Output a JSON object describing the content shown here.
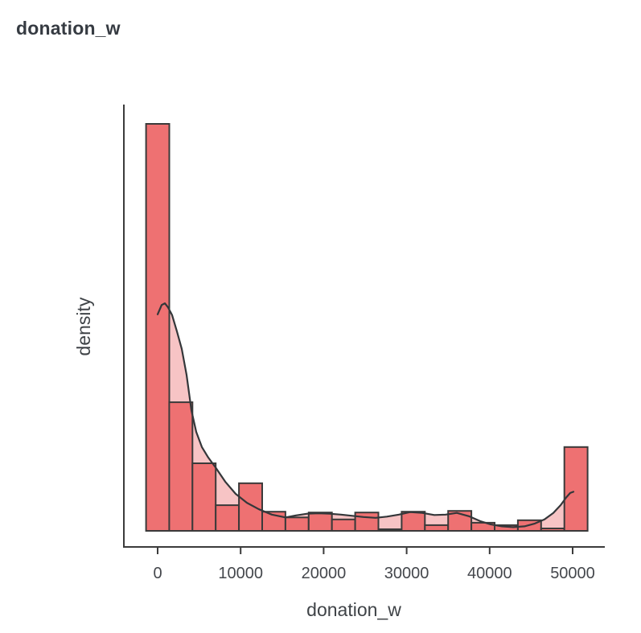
{
  "page": {
    "title": "donation_w"
  },
  "chart_data": {
    "type": "bar",
    "subtype": "histogram_with_kde",
    "title": "donation_w",
    "xlabel": "donation_w",
    "ylabel": "density",
    "grid": false,
    "legend": "none",
    "x_ticks": [
      0,
      10000,
      20000,
      30000,
      40000,
      50000
    ],
    "x_tick_labels": [
      "0",
      "10000",
      "20000",
      "30000",
      "40000",
      "50000"
    ],
    "xlim": [
      -4100,
      53800
    ],
    "ylim_relative": [
      0,
      1.065
    ],
    "bin_width": 2800,
    "bin_centers": [
      0,
      2800,
      5600,
      8400,
      11200,
      14000,
      16800,
      19600,
      22400,
      25200,
      28000,
      30800,
      33600,
      36400,
      39200,
      42000,
      44800,
      47600,
      50400
    ],
    "bar_heights_relative": [
      1.0,
      0.316,
      0.166,
      0.063,
      0.117,
      0.047,
      0.033,
      0.045,
      0.028,
      0.045,
      0.004,
      0.047,
      0.014,
      0.049,
      0.02,
      0.014,
      0.026,
      0.006,
      0.206
    ],
    "kde_points": [
      [
        0,
        0.532
      ],
      [
        485,
        0.555
      ],
      [
        872,
        0.559
      ],
      [
        1260,
        0.549
      ],
      [
        1744,
        0.53
      ],
      [
        2326,
        0.49
      ],
      [
        2907,
        0.447
      ],
      [
        3488,
        0.383
      ],
      [
        4070,
        0.296
      ],
      [
        4651,
        0.243
      ],
      [
        5329,
        0.206
      ],
      [
        6104,
        0.18
      ],
      [
        6977,
        0.156
      ],
      [
        8140,
        0.121
      ],
      [
        9399,
        0.091
      ],
      [
        10756,
        0.069
      ],
      [
        12209,
        0.053
      ],
      [
        13760,
        0.04
      ],
      [
        15407,
        0.033
      ],
      [
        16667,
        0.038
      ],
      [
        18023,
        0.042
      ],
      [
        19380,
        0.043
      ],
      [
        20736,
        0.042
      ],
      [
        22093,
        0.04
      ],
      [
        23450,
        0.037
      ],
      [
        24806,
        0.034
      ],
      [
        26260,
        0.032
      ],
      [
        27616,
        0.035
      ],
      [
        29070,
        0.04
      ],
      [
        30426,
        0.046
      ],
      [
        31880,
        0.044
      ],
      [
        33333,
        0.039
      ],
      [
        34690,
        0.04
      ],
      [
        36047,
        0.044
      ],
      [
        37500,
        0.036
      ],
      [
        38857,
        0.024
      ],
      [
        40116,
        0.016
      ],
      [
        41473,
        0.011
      ],
      [
        42829,
        0.009
      ],
      [
        44186,
        0.011
      ],
      [
        45446,
        0.018
      ],
      [
        46609,
        0.028
      ],
      [
        47674,
        0.044
      ],
      [
        48547,
        0.063
      ],
      [
        49225,
        0.082
      ],
      [
        49709,
        0.093
      ],
      [
        50097,
        0.096
      ]
    ],
    "colors": {
      "bar_fill": "#ee7172",
      "bar_stroke": "#3a3a3a",
      "kde_fill": "#f7c4c5",
      "kde_line": "#34373a",
      "axis": "#3b3b3b",
      "tick_text": "#44474c",
      "label_text": "#3f4347",
      "title_text": "#363b42",
      "background": "#ffffff"
    }
  }
}
